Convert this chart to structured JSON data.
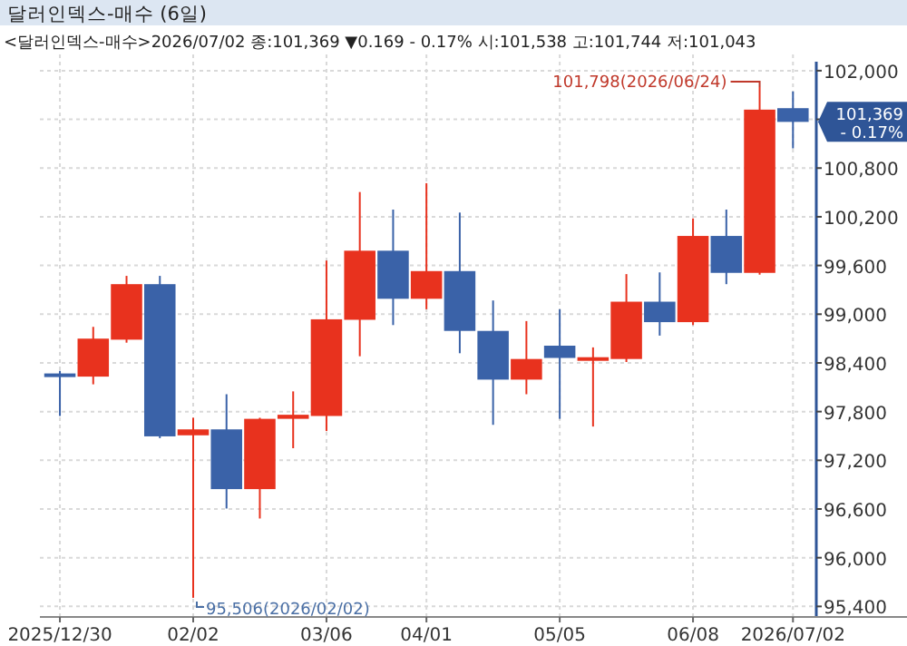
{
  "chart_data": {
    "type": "candlestick",
    "title": "달러인덱스-매수 (6일)",
    "subtitle": "<달러인덱스-매수>2026/07/02 종:101,369 ▼0.169 - 0.17% 시:101,538 고:101,744 저:101,043",
    "categories": [
      "2025/12/30",
      null,
      null,
      null,
      "02/02",
      null,
      null,
      null,
      "03/06",
      null,
      null,
      "04/01",
      null,
      null,
      null,
      "05/05",
      null,
      null,
      null,
      "06/08",
      null,
      null,
      "2026/07/02"
    ],
    "ohlc": [
      [
        98270,
        98302,
        97746,
        98240
      ],
      [
        98231,
        98844,
        98136,
        98699
      ],
      [
        98686,
        99472,
        98649,
        99370
      ],
      [
        99370,
        99472,
        97473,
        97495
      ],
      [
        97508,
        97724,
        95506,
        97581
      ],
      [
        97581,
        98014,
        96606,
        96845
      ],
      [
        96845,
        97724,
        96483,
        97711
      ],
      [
        97711,
        98049,
        97349,
        97761
      ],
      [
        97746,
        99661,
        97560,
        98937
      ],
      [
        98931,
        100505,
        98482,
        99782
      ],
      [
        99782,
        100289,
        98866,
        99190
      ],
      [
        99190,
        100614,
        99061,
        99531
      ],
      [
        99531,
        100252,
        98519,
        98794
      ],
      [
        98794,
        99169,
        97637,
        98194
      ],
      [
        98194,
        98915,
        98014,
        98448
      ],
      [
        98612,
        99061,
        97711,
        98461
      ],
      [
        98448,
        98591,
        97616,
        98470
      ],
      [
        98448,
        99494,
        98411,
        99154
      ],
      [
        99154,
        99515,
        98736,
        98902
      ],
      [
        98902,
        100180,
        98866,
        99964
      ],
      [
        99964,
        100289,
        99370,
        99509
      ],
      [
        99509,
        101798,
        99487,
        101520
      ],
      [
        101538,
        101744,
        101043,
        101369
      ]
    ],
    "colors": [
      "#3a62a8",
      "#e8321e",
      "#e8321e",
      "#3a62a8",
      "#e8321e",
      "#3a62a8",
      "#e8321e",
      "#e8321e",
      "#e8321e",
      "#e8321e",
      "#3a62a8",
      "#e8321e",
      "#3a62a8",
      "#3a62a8",
      "#e8321e",
      "#3a62a8",
      "#e8321e",
      "#e8321e",
      "#3a62a8",
      "#e8321e",
      "#3a62a8",
      "#e8321e",
      "#3a62a8"
    ],
    "ylim": [
      95270,
      102200
    ],
    "yticks": [
      {
        "value": 95400,
        "label": "95,400"
      },
      {
        "value": 96000,
        "label": "96,000"
      },
      {
        "value": 96600,
        "label": "96,600"
      },
      {
        "value": 97200,
        "label": "97,200"
      },
      {
        "value": 97800,
        "label": "97,800"
      },
      {
        "value": 98400,
        "label": "98,400"
      },
      {
        "value": 99000,
        "label": "99,000"
      },
      {
        "value": 99600,
        "label": "99,600"
      },
      {
        "value": 100200,
        "label": "100,200"
      },
      {
        "value": 100800,
        "label": "100,800"
      },
      {
        "value": 101400,
        "label": null
      },
      {
        "value": 102000,
        "label": "102,000"
      }
    ],
    "annotations": [
      {
        "text": "95,506(2026/02/02)",
        "x": "02/02",
        "y": 95506
      },
      "101,798(2026/06/24)",
      "101,369",
      "- 0.17%"
    ],
    "grid": true
  }
}
